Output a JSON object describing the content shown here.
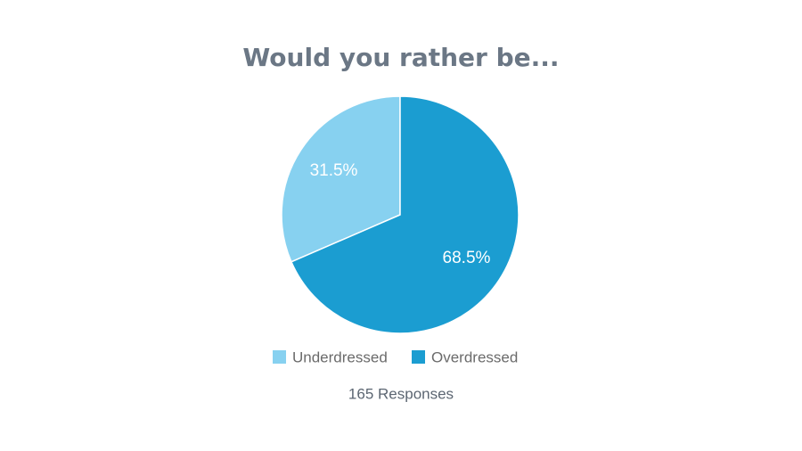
{
  "chart_data": {
    "type": "pie",
    "title": "Would you rather be...",
    "categories": [
      "Underdressed",
      "Overdressed"
    ],
    "values": [
      31.5,
      68.5
    ],
    "value_labels": [
      "31.5%",
      "68.5%"
    ],
    "colors": [
      "#87d1f0",
      "#1b9dd1"
    ],
    "footnote": "165 Responses"
  }
}
